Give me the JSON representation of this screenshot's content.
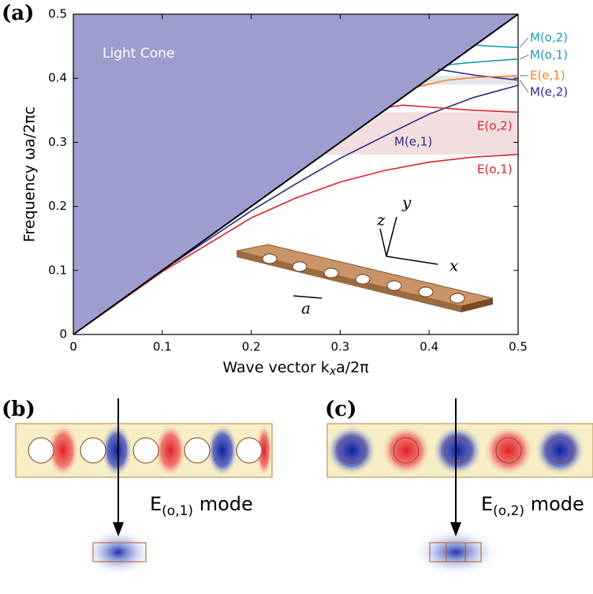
{
  "chart_data": {
    "type": "line",
    "panel_label": "(a)",
    "xlabel": {
      "text": "Wave vector k",
      "sub": "x",
      "rest": "a/2π"
    },
    "ylabel": "Frequency ωa/2πc",
    "region_label": "Light Cone",
    "xlim": [
      0,
      0.5
    ],
    "ylim": [
      0,
      0.5
    ],
    "xticks": [
      0,
      0.1,
      0.2,
      0.3,
      0.4,
      0.5
    ],
    "yticks": [
      0,
      0.1,
      0.2,
      0.3,
      0.4,
      0.5
    ],
    "light_line": {
      "x": [
        0,
        0.5
      ],
      "values": [
        0,
        0.5
      ],
      "color": "#000000",
      "fill": "#9d9dcf"
    },
    "gaps": [
      {
        "range": [
          0.281,
          0.347
        ],
        "color": "#f2dede"
      },
      {
        "range": [
          0.39,
          0.404
        ],
        "color": "#e4e4ec"
      }
    ],
    "series": [
      {
        "name": "E(o,1)",
        "color": "#e0202e",
        "x": [
          0,
          0.1,
          0.2,
          0.25,
          0.3,
          0.35,
          0.4,
          0.45,
          0.5
        ],
        "values": [
          0,
          0.098,
          0.182,
          0.213,
          0.238,
          0.256,
          0.269,
          0.277,
          0.281
        ]
      },
      {
        "name": "M(e,1)",
        "color": "#2a2a8c",
        "x": [
          0,
          0.1,
          0.2,
          0.25,
          0.3,
          0.35,
          0.4,
          0.45,
          0.5
        ],
        "values": [
          0,
          0.1,
          0.193,
          0.235,
          0.275,
          0.31,
          0.344,
          0.37,
          0.389
        ]
      },
      {
        "name": "E(o,2)",
        "color": "#e0202e",
        "x": [
          0.355,
          0.37,
          0.4,
          0.45,
          0.5
        ],
        "values": [
          0.355,
          0.358,
          0.355,
          0.35,
          0.347
        ]
      },
      {
        "name": "M(e,2)",
        "color": "#2a2a8c",
        "x": [
          0.41,
          0.45,
          0.5
        ],
        "values": [
          0.414,
          0.405,
          0.397
        ]
      },
      {
        "name": "E(e,1)",
        "color": "#f0801e",
        "x": [
          0.385,
          0.42,
          0.45,
          0.5
        ],
        "values": [
          0.386,
          0.397,
          0.401,
          0.404
        ]
      },
      {
        "name": "M(o,1)",
        "color": "#1a9bb8",
        "x": [
          0.42,
          0.45,
          0.5
        ],
        "values": [
          0.421,
          0.425,
          0.43
        ]
      },
      {
        "name": "M(o,2)",
        "color": "#1a9bb8",
        "x": [
          0.45,
          0.47,
          0.5
        ],
        "values": [
          0.452,
          0.45,
          0.448
        ]
      }
    ],
    "inset_labels": [
      "x",
      "y",
      "z",
      "a"
    ]
  },
  "panels": [
    {
      "label": "(b)",
      "mode": {
        "text": "E",
        "sub": "(o,1)",
        "rest": " mode"
      }
    },
    {
      "label": "(c)",
      "mode": {
        "text": "E",
        "sub": "(o,2)",
        "rest": " mode"
      }
    }
  ]
}
